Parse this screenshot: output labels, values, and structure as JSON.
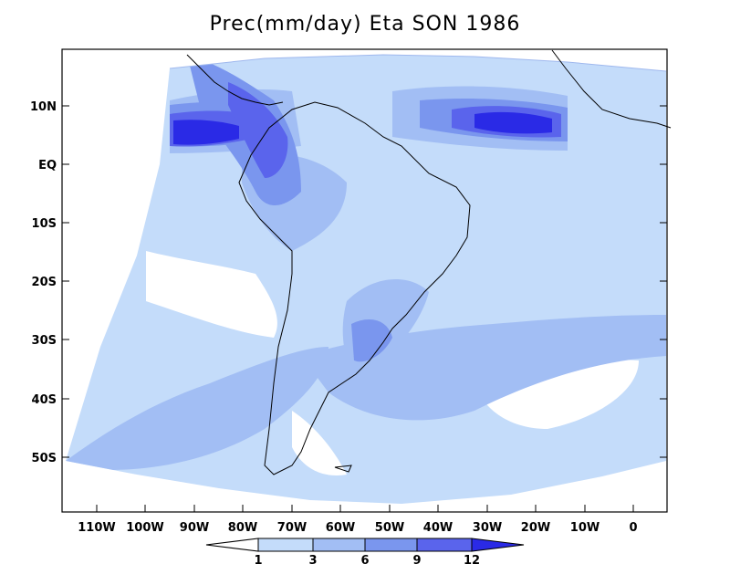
{
  "title": "Prec(mm/day) Eta SON 1986",
  "latitude_labels": [
    "10N",
    "EQ",
    "10S",
    "20S",
    "30S",
    "40S",
    "50S"
  ],
  "longitude_labels": [
    "110W",
    "100W",
    "90W",
    "80W",
    "70W",
    "60W",
    "50W",
    "40W",
    "30W",
    "20W",
    "10W",
    "0"
  ],
  "colorbar": {
    "ticks": [
      "1",
      "3",
      "6",
      "9",
      "12"
    ],
    "colors": [
      "#ffffff",
      "#c4dcfa",
      "#a2bef4",
      "#7a96ee",
      "#5a64ec",
      "#2a2ae6"
    ]
  },
  "colors": {
    "white": "#ffffff",
    "light": "#c4dcfa",
    "medium": "#a2bef4",
    "medium_dark": "#7a96ee",
    "dark": "#5a64ec",
    "darkest": "#2a2ae6"
  }
}
